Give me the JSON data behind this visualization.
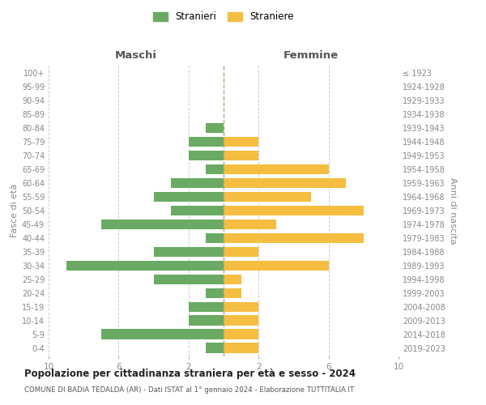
{
  "age_groups": [
    "0-4",
    "5-9",
    "10-14",
    "15-19",
    "20-24",
    "25-29",
    "30-34",
    "35-39",
    "40-44",
    "45-49",
    "50-54",
    "55-59",
    "60-64",
    "65-69",
    "70-74",
    "75-79",
    "80-84",
    "85-89",
    "90-94",
    "95-99",
    "100+"
  ],
  "birth_years": [
    "2019-2023",
    "2014-2018",
    "2009-2013",
    "2004-2008",
    "1999-2003",
    "1994-1998",
    "1989-1993",
    "1984-1988",
    "1979-1983",
    "1974-1978",
    "1969-1973",
    "1964-1968",
    "1959-1963",
    "1954-1958",
    "1949-1953",
    "1944-1948",
    "1939-1943",
    "1934-1938",
    "1929-1933",
    "1924-1928",
    "≤ 1923"
  ],
  "males": [
    1,
    7,
    2,
    2,
    1,
    4,
    9,
    4,
    1,
    7,
    3,
    4,
    3,
    1,
    2,
    2,
    1,
    0,
    0,
    0,
    0
  ],
  "females": [
    2,
    2,
    2,
    2,
    1,
    1,
    6,
    2,
    8,
    3,
    8,
    5,
    7,
    6,
    2,
    2,
    0,
    0,
    0,
    0,
    0
  ],
  "male_color": "#6aaa64",
  "female_color": "#f5be41",
  "title": "Popolazione per cittadinanza straniera per età e sesso - 2024",
  "subtitle": "COMUNE DI BADIA TEDALDA (AR) - Dati ISTAT al 1° gennaio 2024 - Elaborazione TUTTITALIA.IT",
  "left_label": "Maschi",
  "right_label": "Femmine",
  "y_left_label": "Fasce di età",
  "y_right_label": "Anni di nascita",
  "legend_male": "Stranieri",
  "legend_female": "Straniere",
  "xlim": 10,
  "background_color": "#ffffff",
  "grid_color": "#cccccc"
}
